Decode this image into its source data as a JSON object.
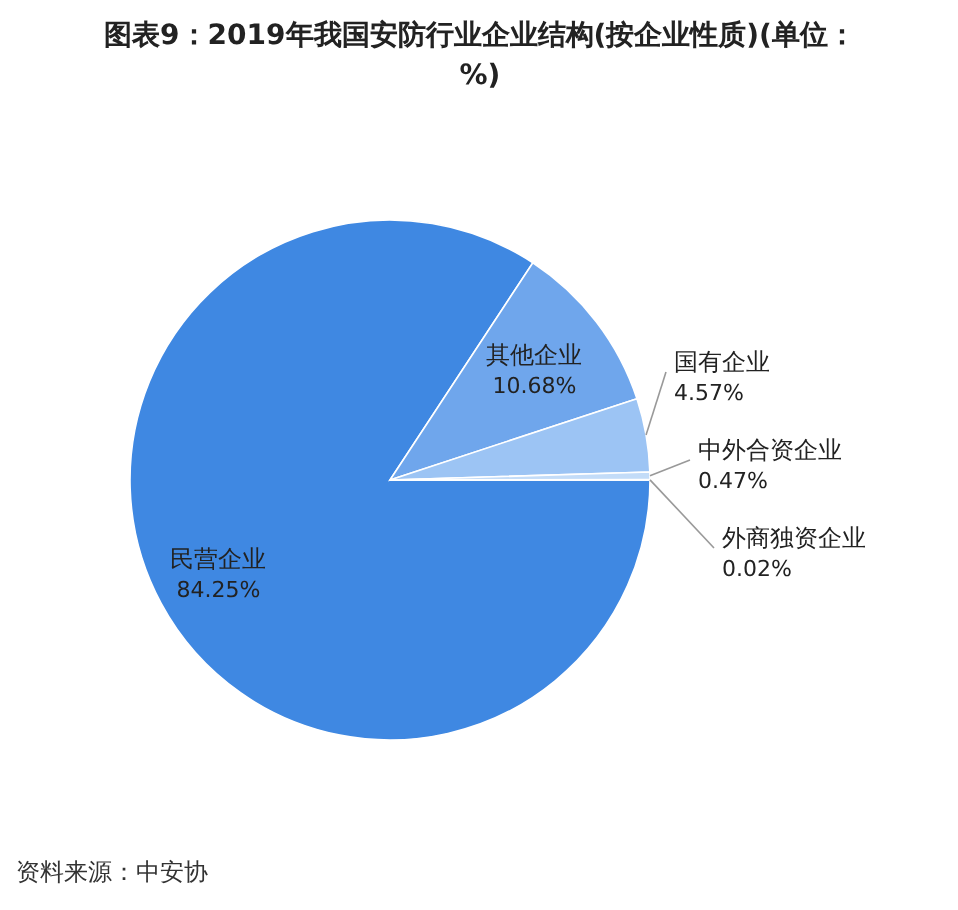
{
  "chart_data": {
    "type": "pie",
    "title": "图表9：2019年我国安防行业企业结构(按企业性质)(单位：%)",
    "categories": [
      "民营企业",
      "其他企业",
      "国有企业",
      "中外合资企业",
      "外商独资企业"
    ],
    "values": [
      84.25,
      10.68,
      4.57,
      0.47,
      0.02
    ],
    "value_labels": [
      "84.25%",
      "10.68%",
      "4.57%",
      "0.47%",
      "0.02%"
    ],
    "colors": [
      "#3f88e2",
      "#6fa6ec",
      "#9cc4f4",
      "#c3dcf8",
      "#e1edfb"
    ],
    "annotations": [
      "资料来源：中安协"
    ]
  }
}
